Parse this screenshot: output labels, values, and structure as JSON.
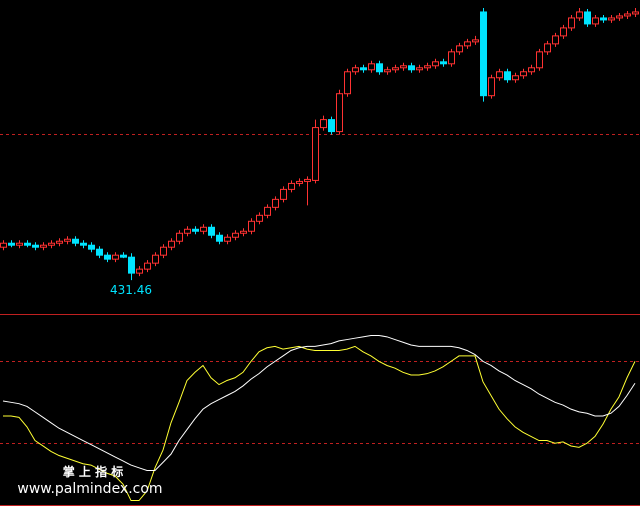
{
  "chart_data": [
    {
      "type": "candlestick",
      "up_color": "#ff3232",
      "down_color": "#00e4ff",
      "ylim": [
        415,
        572
      ],
      "annotations": [
        {
          "text": "431.46",
          "color": "#00e4ff"
        }
      ],
      "open": [
        448,
        450,
        449,
        450,
        449,
        448,
        449,
        450,
        451,
        452,
        450,
        449,
        447,
        444,
        442,
        444,
        443,
        435,
        437,
        440,
        444,
        448,
        451,
        455,
        457,
        456,
        458,
        454,
        451,
        453,
        455,
        456,
        461,
        464,
        468,
        472,
        477,
        480,
        481,
        481.5,
        508,
        512,
        506,
        525,
        536,
        538,
        537,
        540,
        536,
        537,
        538,
        539,
        537,
        538,
        539,
        541,
        540,
        546,
        549,
        551,
        566,
        524,
        533,
        536,
        532,
        534,
        536,
        538,
        546,
        550,
        554,
        558,
        563,
        566,
        560,
        563,
        562,
        563,
        564,
        565
      ],
      "high": [
        451.5,
        451.5,
        451.5,
        451.5,
        450.5,
        450.5,
        451.5,
        452.5,
        453.5,
        453.5,
        451.5,
        450.5,
        448.5,
        445.5,
        445.5,
        445.5,
        445,
        438.5,
        441.5,
        445.5,
        449.5,
        452.5,
        456.5,
        458.5,
        458.5,
        459.5,
        459.5,
        455.5,
        454.5,
        456.5,
        457.5,
        462.5,
        465.5,
        469.5,
        473.5,
        478.5,
        481.5,
        482.5,
        483.5,
        512,
        514,
        513.5,
        527,
        537.5,
        539.5,
        539.5,
        541.5,
        541.5,
        538.5,
        539.5,
        540.5,
        540.5,
        539.5,
        540.5,
        542.5,
        542.5,
        547.5,
        550.5,
        552.5,
        554,
        568,
        534.5,
        537.5,
        537.5,
        535.5,
        537.5,
        539.5,
        547.5,
        551.5,
        555.5,
        559.5,
        564.5,
        568,
        567.5,
        564.5,
        564.5,
        564.5,
        565.5,
        566.5,
        568
      ],
      "low": [
        446.5,
        448,
        447.5,
        448,
        446.5,
        446.5,
        447.5,
        448.5,
        449.5,
        448.5,
        447.5,
        445.5,
        442.5,
        440.5,
        440.5,
        442.5,
        431.46,
        433.5,
        435.5,
        438.5,
        442.5,
        446.5,
        449.5,
        453.5,
        454.5,
        454.5,
        452.5,
        449.5,
        449.5,
        451.5,
        453.5,
        454.5,
        459.5,
        462.5,
        466.5,
        470.5,
        475.5,
        478.5,
        469,
        480,
        506.5,
        504.5,
        504.5,
        523.5,
        534.5,
        535.5,
        535.5,
        534.5,
        534.5,
        535.5,
        536.5,
        535.5,
        535.5,
        536.5,
        537.5,
        538.5,
        538.5,
        544.5,
        547.5,
        549.5,
        521,
        522.5,
        531.5,
        530.5,
        530.5,
        532.5,
        534.5,
        536.5,
        544.5,
        548.5,
        552.5,
        556.5,
        561.5,
        558.5,
        558.5,
        560.5,
        560.5,
        561.5,
        562.5,
        563.5
      ],
      "close": [
        450,
        449,
        450,
        449,
        448,
        449,
        450,
        451,
        452,
        450,
        449,
        447,
        444,
        442,
        444,
        443,
        435,
        437,
        440,
        444,
        448,
        451,
        455,
        457,
        456,
        458,
        454,
        451,
        453,
        455,
        456,
        461,
        464,
        468,
        472,
        477,
        480,
        481,
        482,
        508,
        512,
        506,
        525,
        536,
        538,
        537,
        540,
        536,
        537,
        538,
        539,
        537,
        538,
        539,
        541,
        540,
        546,
        549,
        551,
        552,
        524,
        533,
        536,
        532,
        534,
        536,
        538,
        546,
        550,
        554,
        558,
        563,
        566,
        560,
        563,
        562,
        563,
        564,
        565,
        566
      ]
    },
    {
      "type": "line",
      "ylim": [
        -26,
        114
      ],
      "watermark": {
        "title": "掌 上 指 标",
        "url": "www.palmindex.com"
      },
      "series": [
        {
          "color": "#ffff33",
          "values": [
            40,
            40,
            39,
            32,
            22,
            18,
            14,
            11,
            9,
            7,
            5,
            4,
            1,
            -2,
            -4,
            -10,
            -22,
            -22,
            -15,
            2,
            15,
            35,
            50,
            66,
            72,
            77,
            68,
            63,
            66,
            68,
            72,
            80,
            87,
            90,
            91,
            89,
            90,
            91,
            89,
            88,
            88,
            88,
            88,
            89,
            91,
            87,
            84,
            80,
            77,
            75,
            72,
            70,
            70,
            71,
            73,
            76,
            80,
            84,
            84,
            84,
            65,
            55,
            45,
            38,
            32,
            28,
            25,
            22,
            22,
            20,
            21,
            18,
            17,
            20,
            25,
            34,
            45,
            54,
            68,
            80
          ]
        },
        {
          "color": "#ffffff",
          "values": [
            51,
            50,
            49,
            47,
            43,
            39,
            35,
            31,
            28,
            25,
            22,
            19,
            16,
            13,
            10,
            7,
            4,
            2,
            0,
            0,
            6,
            12,
            22,
            30,
            38,
            45,
            49,
            52,
            55,
            58,
            62,
            67,
            71,
            76,
            80,
            84,
            88,
            90,
            91,
            91,
            92,
            93,
            95,
            96,
            97,
            98,
            99,
            99,
            98,
            96,
            94,
            92,
            91,
            91,
            91,
            91,
            91,
            90,
            88,
            85,
            80,
            77,
            73,
            70,
            66,
            63,
            60,
            56,
            53,
            50,
            48,
            45,
            43,
            42,
            40,
            40,
            42,
            47,
            55,
            64
          ]
        }
      ]
    }
  ]
}
